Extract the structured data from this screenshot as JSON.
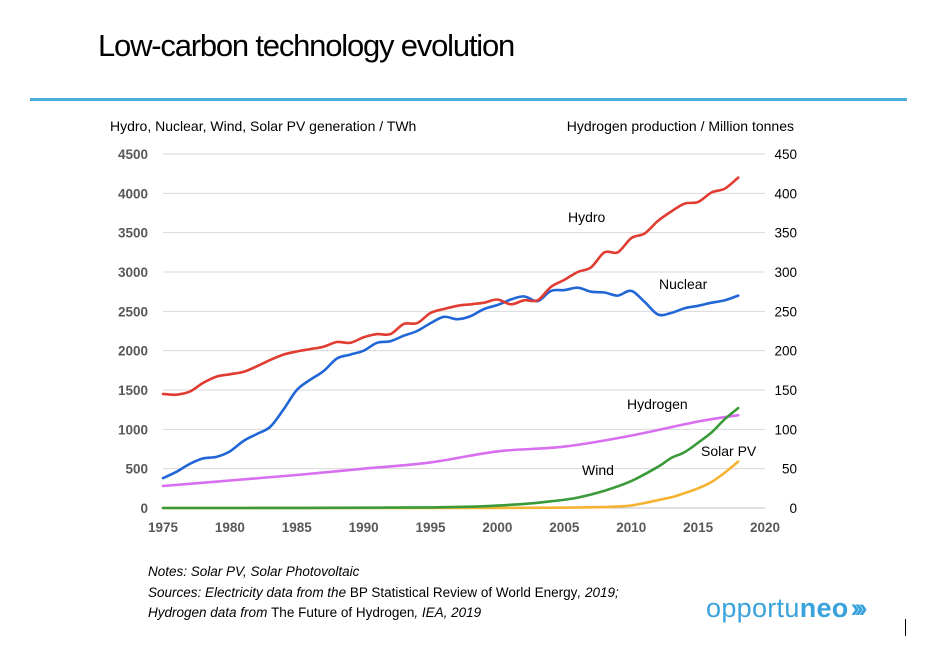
{
  "slide": {
    "title": "Low-carbon technology evolution"
  },
  "notes": {
    "line1": "Notes: Solar PV, Solar Photovoltaic",
    "line2_a": "Sources: Electricity data from the ",
    "line2_b": "BP Statistical Review of World Energy",
    "line2_c": ", 2019;",
    "line3_a": "Hydrogen data from ",
    "line3_b": "The Future of Hydrogen",
    "line3_c": ", IEA, 2019"
  },
  "logo": {
    "light": "opportu",
    "bold": "neo",
    "chevrons": "›››"
  },
  "chart_data": {
    "type": "line",
    "left_axis_label": "Hydro, Nuclear, Wind, Solar PV generation / TWh",
    "right_axis_label": "Hydrogen production / Million tonnes",
    "xlim": [
      1975,
      2020
    ],
    "ylim_left": [
      0,
      4500
    ],
    "ylim_right": [
      0,
      450
    ],
    "x_ticks": [
      1975,
      1980,
      1985,
      1990,
      1995,
      2000,
      2005,
      2010,
      2015,
      2020
    ],
    "y_ticks_left": [
      0,
      500,
      1000,
      1500,
      2000,
      2500,
      3000,
      3500,
      4000,
      4500
    ],
    "y_ticks_right": [
      0,
      50,
      100,
      150,
      200,
      250,
      300,
      350,
      400,
      450
    ],
    "grid": true,
    "legend": "inline labels",
    "series": [
      {
        "name": "Hydro",
        "axis": "left",
        "color": "#e03c31",
        "x": [
          1975,
          1976,
          1977,
          1978,
          1979,
          1980,
          1981,
          1982,
          1983,
          1984,
          1985,
          1986,
          1987,
          1988,
          1989,
          1990,
          1991,
          1992,
          1993,
          1994,
          1995,
          1996,
          1997,
          1998,
          1999,
          2000,
          2001,
          2002,
          2003,
          2004,
          2005,
          2006,
          2007,
          2008,
          2009,
          2010,
          2011,
          2012,
          2013,
          2014,
          2015,
          2016,
          2017,
          2018
        ],
        "values": [
          1450,
          1440,
          1480,
          1590,
          1670,
          1700,
          1730,
          1800,
          1880,
          1950,
          1990,
          2020,
          2050,
          2110,
          2100,
          2170,
          2210,
          2210,
          2340,
          2350,
          2480,
          2530,
          2570,
          2590,
          2610,
          2650,
          2590,
          2640,
          2640,
          2810,
          2900,
          3000,
          3060,
          3250,
          3250,
          3430,
          3490,
          3650,
          3770,
          3870,
          3890,
          4010,
          4060,
          4200
        ]
      },
      {
        "name": "Nuclear",
        "axis": "left",
        "color": "#2166d6",
        "x": [
          1975,
          1976,
          1977,
          1978,
          1979,
          1980,
          1981,
          1982,
          1983,
          1984,
          1985,
          1986,
          1987,
          1988,
          1989,
          1990,
          1991,
          1992,
          1993,
          1994,
          1995,
          1996,
          1997,
          1998,
          1999,
          2000,
          2001,
          2002,
          2003,
          2004,
          2005,
          2006,
          2007,
          2008,
          2009,
          2010,
          2011,
          2012,
          2013,
          2014,
          2015,
          2016,
          2017,
          2018
        ],
        "values": [
          380,
          460,
          560,
          630,
          650,
          720,
          850,
          940,
          1030,
          1250,
          1500,
          1630,
          1740,
          1900,
          1950,
          2000,
          2100,
          2120,
          2190,
          2250,
          2350,
          2430,
          2400,
          2440,
          2530,
          2580,
          2650,
          2690,
          2630,
          2760,
          2770,
          2800,
          2750,
          2740,
          2700,
          2760,
          2620,
          2460,
          2480,
          2540,
          2570,
          2610,
          2640,
          2700
        ]
      },
      {
        "name": "Wind",
        "axis": "left",
        "color": "#3a9a3a",
        "x": [
          1975,
          1980,
          1985,
          1990,
          1995,
          1998,
          2000,
          2002,
          2004,
          2006,
          2008,
          2010,
          2012,
          2013,
          2014,
          2015,
          2016,
          2017,
          2018
        ],
        "values": [
          0,
          0,
          1,
          4,
          8,
          16,
          31,
          52,
          85,
          132,
          219,
          342,
          524,
          637,
          710,
          830,
          960,
          1130,
          1270
        ]
      },
      {
        "name": "Solar PV",
        "axis": "left",
        "color": "#f5b331",
        "x": [
          1975,
          1990,
          2000,
          2005,
          2008,
          2009,
          2010,
          2011,
          2012,
          2013,
          2014,
          2015,
          2016,
          2017,
          2018
        ],
        "values": [
          0,
          0,
          1,
          4,
          12,
          20,
          32,
          64,
          100,
          136,
          190,
          250,
          330,
          450,
          590
        ]
      },
      {
        "name": "Hydrogen",
        "axis": "right",
        "color": "#d86ef0",
        "x": [
          1975,
          1980,
          1985,
          1990,
          1995,
          2000,
          2005,
          2010,
          2015,
          2018
        ],
        "values": [
          28,
          35,
          42,
          50,
          58,
          72,
          78,
          92,
          110,
          118
        ]
      }
    ]
  }
}
